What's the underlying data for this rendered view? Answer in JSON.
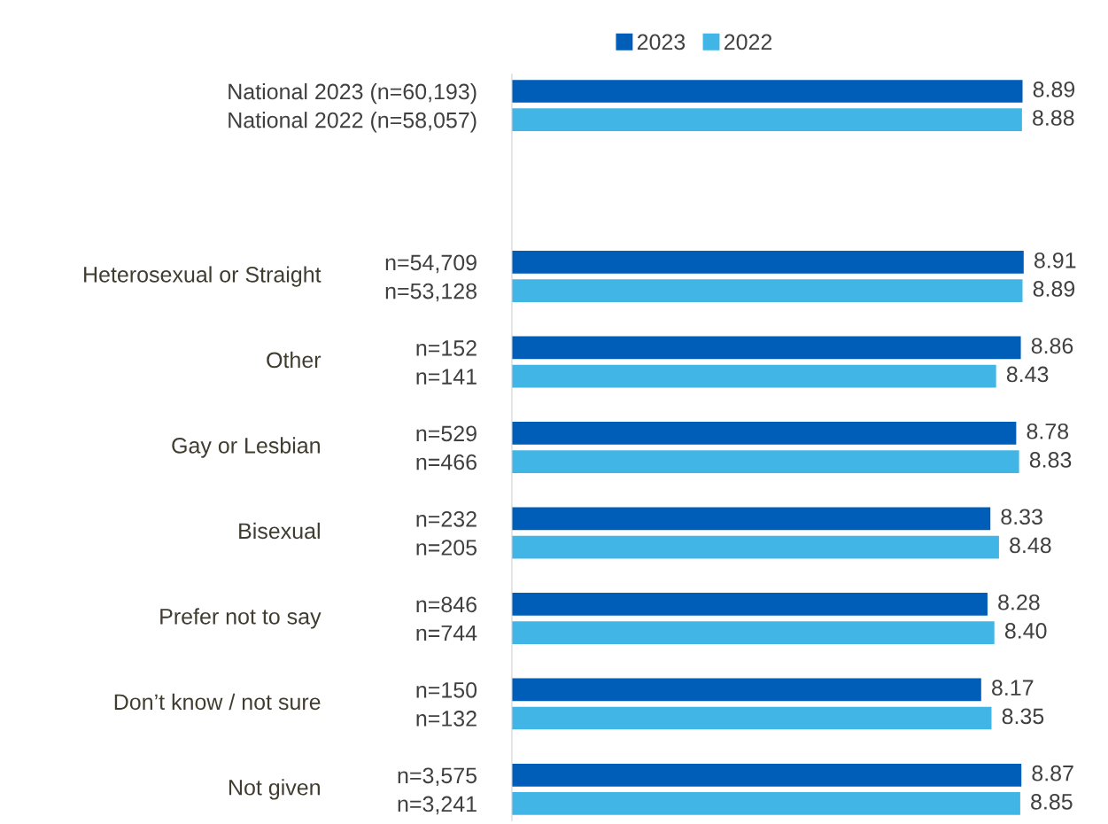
{
  "chart_data": {
    "type": "bar",
    "orientation": "horizontal",
    "categories": [
      "National 2023 (n=60,193)",
      "National 2022 (n=58,057)",
      null,
      null,
      null,
      null,
      "n=54,709",
      "n=53,128",
      null,
      "n=152",
      "n=141",
      null,
      "n=529",
      "n=466",
      null,
      "n=232",
      "n=205",
      null,
      "n=846",
      "n=744",
      null,
      "n=150",
      "n=132",
      null,
      "n=3,575",
      "n=3,241"
    ],
    "series": [
      {
        "name": "2023",
        "color": "#005eb8",
        "values": [
          8.89,
          null,
          null,
          null,
          null,
          null,
          8.91,
          null,
          null,
          8.86,
          null,
          null,
          8.78,
          null,
          null,
          8.33,
          null,
          null,
          8.28,
          null,
          null,
          8.17,
          null,
          null,
          8.87,
          null
        ],
        "value_labels": [
          "8.89",
          null,
          null,
          null,
          null,
          null,
          "8.91",
          null,
          null,
          "8.86",
          null,
          null,
          "8.78",
          null,
          null,
          "8.33",
          null,
          null,
          "8.28",
          null,
          null,
          "8.17",
          null,
          null,
          "8.87",
          null
        ]
      },
      {
        "name": "2022",
        "color": "#41b6e6",
        "values": [
          null,
          8.88,
          null,
          null,
          null,
          null,
          null,
          8.89,
          null,
          null,
          8.43,
          null,
          null,
          8.83,
          null,
          null,
          8.48,
          null,
          null,
          8.4,
          null,
          null,
          8.35,
          null,
          null,
          8.85
        ],
        "value_labels": [
          null,
          "8.88",
          null,
          null,
          null,
          null,
          null,
          "8.89",
          null,
          null,
          "8.43",
          null,
          null,
          "8.83",
          null,
          null,
          "8.48",
          null,
          null,
          "8.40",
          null,
          null,
          "8.35",
          null,
          null,
          "8.85"
        ]
      }
    ],
    "annotations": [
      "Heterosexual or Straight",
      "Other",
      "Gay or Lesbian",
      "Bisexual",
      "Prefer not to say",
      "Don’t know / not sure",
      "Not given"
    ],
    "tick_labels": "y",
    "legend": "top",
    "grid": false
  }
}
